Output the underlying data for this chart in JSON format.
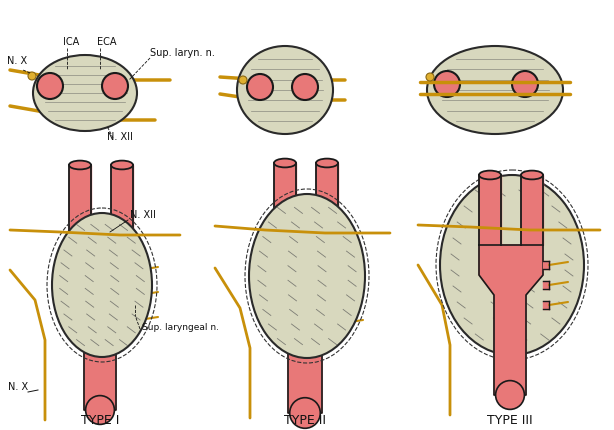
{
  "background_color": "#ffffff",
  "type_labels": [
    "TYPE I",
    "TYPE II",
    "TYPE III"
  ],
  "label_ICA": "ICA",
  "label_ECA": "ECA",
  "label_sup_laryn": "Sup. laryn. n.",
  "label_NXII": "N. XII",
  "label_NX": "N. X",
  "label_sup_laryngeal": "Sup. laryngeal n.",
  "colors": {
    "tumor_fill": "#d8d8be",
    "tumor_outline": "#2a2a2a",
    "artery_fill": "#e87878",
    "artery_outline": "#1a1a1a",
    "nerve_color": "#c8900a",
    "dot_yellow": "#e0b030",
    "dot_red_fill": "#d03030",
    "dot_red_edge": "#8b0000",
    "label_color": "#111111",
    "sketch_color": "#555555",
    "dashed_color": "#333333",
    "background": "#ffffff"
  },
  "font_sizes": {
    "type_label": 8,
    "annotation": 7
  }
}
